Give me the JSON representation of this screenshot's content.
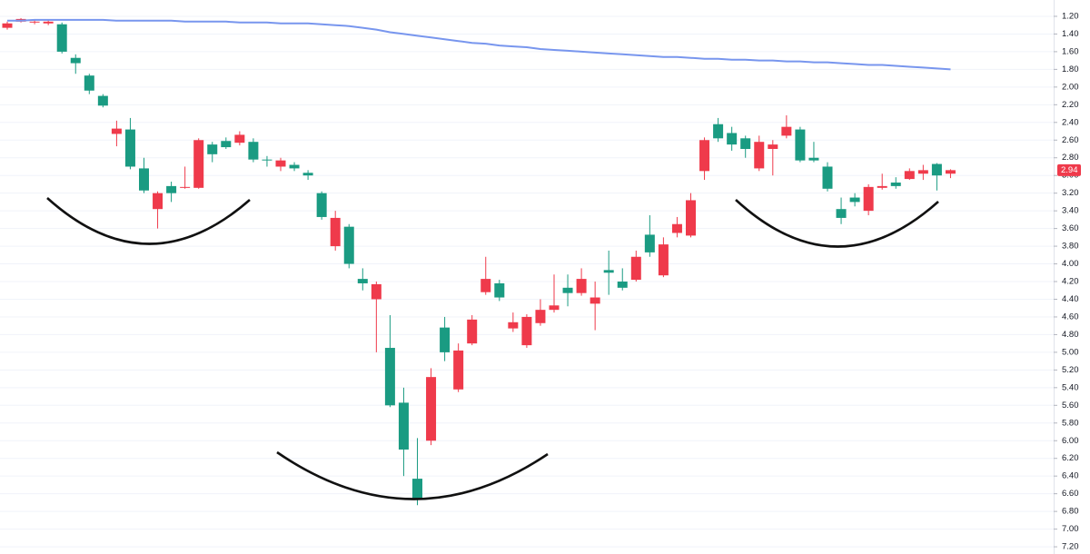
{
  "chart_data": {
    "type": "candlestick",
    "inverted_y": true,
    "ylim": [
      1.0,
      7.3
    ],
    "yticks": [
      {
        "value": 1.2,
        "label": "1.20"
      },
      {
        "value": 1.4,
        "label": "1.40"
      },
      {
        "value": 1.6,
        "label": "1.60"
      },
      {
        "value": 1.8,
        "label": "1.80"
      },
      {
        "value": 2.0,
        "label": "2.00"
      },
      {
        "value": 2.2,
        "label": "2.20"
      },
      {
        "value": 2.4,
        "label": "2.40"
      },
      {
        "value": 2.6,
        "label": "2.60"
      },
      {
        "value": 2.8,
        "label": "2.80"
      },
      {
        "value": 3.0,
        "label": "3.00"
      },
      {
        "value": 3.2,
        "label": "3.20"
      },
      {
        "value": 3.4,
        "label": "3.40"
      },
      {
        "value": 3.6,
        "label": "3.60"
      },
      {
        "value": 3.8,
        "label": "3.80"
      },
      {
        "value": 4.0,
        "label": "4.00"
      },
      {
        "value": 4.2,
        "label": "4.20"
      },
      {
        "value": 4.4,
        "label": "4.40"
      },
      {
        "value": 4.6,
        "label": "4.60"
      },
      {
        "value": 4.8,
        "label": "4.80"
      },
      {
        "value": 5.0,
        "label": "5.00"
      },
      {
        "value": 5.2,
        "label": "5.20"
      },
      {
        "value": 5.4,
        "label": "5.40"
      },
      {
        "value": 5.6,
        "label": "5.60"
      },
      {
        "value": 5.8,
        "label": "5.80"
      },
      {
        "value": 6.0,
        "label": "6.00"
      },
      {
        "value": 6.2,
        "label": "6.20"
      },
      {
        "value": 6.4,
        "label": "6.40"
      },
      {
        "value": 6.6,
        "label": "6.60"
      },
      {
        "value": 6.8,
        "label": "6.80"
      },
      {
        "value": 7.0,
        "label": "7.00"
      },
      {
        "value": 7.2,
        "label": "7.20"
      }
    ],
    "grid": true,
    "up_color": "#1a9b82",
    "down_color": "#ef3a4b",
    "open": [
      1.33,
      1.26,
      1.27,
      1.28,
      1.29,
      1.67,
      1.87,
      2.1,
      2.53,
      2.48,
      2.92,
      3.38,
      3.12,
      3.14,
      3.14,
      2.65,
      2.61,
      2.63,
      2.62,
      2.82,
      2.9,
      2.88,
      2.97,
      3.2,
      3.8,
      3.58,
      4.17,
      4.4,
      4.95,
      5.57,
      6.43,
      6.0,
      4.72,
      5.42,
      4.9,
      4.32,
      4.22,
      4.73,
      4.92,
      4.67,
      4.52,
      4.27,
      4.33,
      4.45,
      4.07,
      4.2,
      4.18,
      3.67,
      4.13,
      3.65,
      3.68,
      2.95,
      2.42,
      2.52,
      2.58,
      2.92,
      2.7,
      2.55,
      2.48,
      2.8,
      2.9,
      3.38,
      3.25,
      3.4,
      3.14,
      3.08,
      3.04,
      2.98,
      2.87,
      2.98
    ],
    "high": [
      1.35,
      1.27,
      1.29,
      1.3,
      1.62,
      1.85,
      2.08,
      2.23,
      2.67,
      2.93,
      3.2,
      3.6,
      3.3,
      3.15,
      3.15,
      2.85,
      2.7,
      2.66,
      2.85,
      2.9,
      2.95,
      2.95,
      3.05,
      3.5,
      3.85,
      4.05,
      4.3,
      5.0,
      5.62,
      6.4,
      6.73,
      6.05,
      5.1,
      5.45,
      4.92,
      4.35,
      4.42,
      4.77,
      4.95,
      4.7,
      4.55,
      4.48,
      4.36,
      4.75,
      4.35,
      4.3,
      4.2,
      3.92,
      4.15,
      3.7,
      3.7,
      3.05,
      2.62,
      2.72,
      2.8,
      2.95,
      3.0,
      2.58,
      2.85,
      2.85,
      3.18,
      3.55,
      3.35,
      3.45,
      3.16,
      3.15,
      3.05,
      3.05,
      3.17,
      3.03
    ],
    "low": [
      1.26,
      1.22,
      1.24,
      1.24,
      1.27,
      1.63,
      1.85,
      2.08,
      2.38,
      2.35,
      2.8,
      3.18,
      3.07,
      2.9,
      2.58,
      2.62,
      2.57,
      2.5,
      2.58,
      2.78,
      2.8,
      2.85,
      2.94,
      3.18,
      3.4,
      3.55,
      4.05,
      4.2,
      4.58,
      5.4,
      5.97,
      5.18,
      4.6,
      4.9,
      4.58,
      3.92,
      4.18,
      4.55,
      4.57,
      4.4,
      4.12,
      4.12,
      4.05,
      4.2,
      3.85,
      4.05,
      3.85,
      3.45,
      3.7,
      3.47,
      3.2,
      2.57,
      2.35,
      2.45,
      2.55,
      2.55,
      2.6,
      2.32,
      2.45,
      2.62,
      2.85,
      3.25,
      3.2,
      3.1,
      2.98,
      3.02,
      2.92,
      2.88,
      2.86,
      2.93
    ],
    "close": [
      1.28,
      1.23,
      1.26,
      1.26,
      1.6,
      1.73,
      2.04,
      2.21,
      2.47,
      2.9,
      3.17,
      3.2,
      3.2,
      3.13,
      2.6,
      2.76,
      2.68,
      2.54,
      2.82,
      2.83,
      2.83,
      2.92,
      3.0,
      3.47,
      3.48,
      4.0,
      4.22,
      4.23,
      5.6,
      6.1,
      6.67,
      5.28,
      5.0,
      4.98,
      4.63,
      4.17,
      4.38,
      4.66,
      4.6,
      4.52,
      4.47,
      4.33,
      4.17,
      4.38,
      4.1,
      4.27,
      3.92,
      3.87,
      3.78,
      3.55,
      3.28,
      2.6,
      2.58,
      2.65,
      2.7,
      2.62,
      2.65,
      2.45,
      2.83,
      2.83,
      3.15,
      3.48,
      3.3,
      3.13,
      3.12,
      3.12,
      2.95,
      2.94,
      3.0,
      2.94
    ],
    "moving_average": {
      "color": "#7896ee",
      "values": [
        1.25,
        1.25,
        1.24,
        1.24,
        1.24,
        1.24,
        1.24,
        1.24,
        1.25,
        1.25,
        1.25,
        1.25,
        1.25,
        1.26,
        1.26,
        1.26,
        1.26,
        1.27,
        1.27,
        1.27,
        1.28,
        1.28,
        1.28,
        1.29,
        1.3,
        1.31,
        1.33,
        1.35,
        1.38,
        1.4,
        1.42,
        1.44,
        1.46,
        1.48,
        1.5,
        1.51,
        1.53,
        1.54,
        1.55,
        1.57,
        1.58,
        1.59,
        1.6,
        1.61,
        1.62,
        1.63,
        1.64,
        1.65,
        1.66,
        1.66,
        1.67,
        1.68,
        1.68,
        1.69,
        1.69,
        1.7,
        1.7,
        1.71,
        1.71,
        1.72,
        1.72,
        1.73,
        1.74,
        1.75,
        1.75,
        1.76,
        1.77,
        1.78,
        1.79,
        1.8
      ]
    }
  }
}
